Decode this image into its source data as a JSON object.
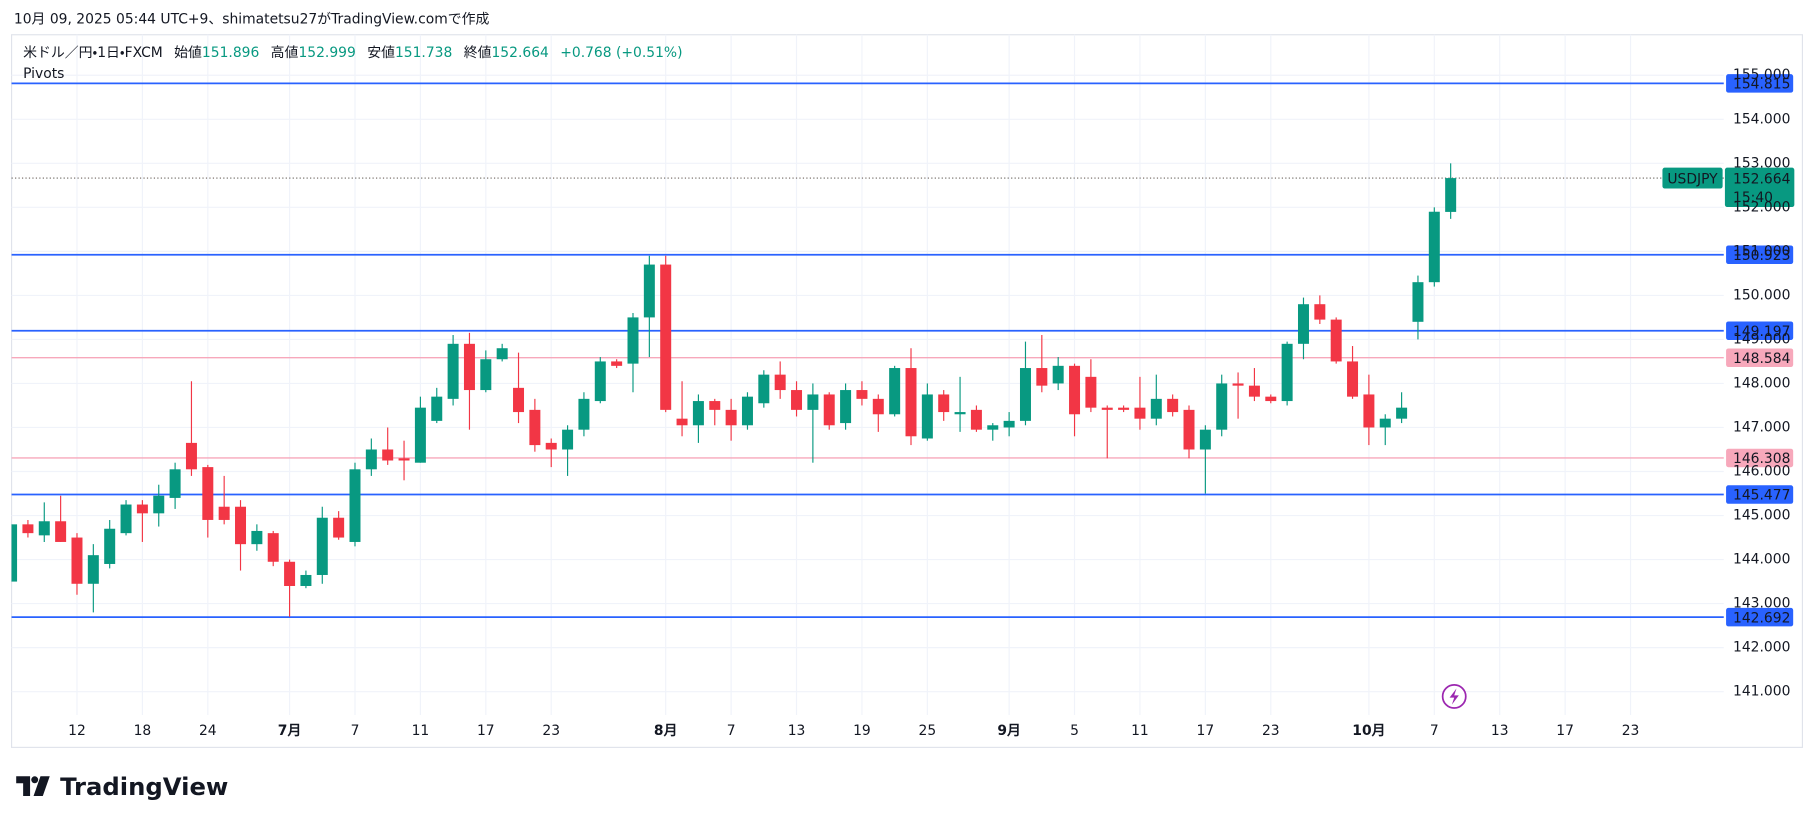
{
  "header": {
    "caption": "10月 09, 2025 05:44 UTC+9、shimatetsu27がTradingView.comで作成"
  },
  "legend": {
    "symbol": "米ドル／円・1日・FXCM",
    "open_label": "始値",
    "open": 151.896,
    "high_label": "高値",
    "high": 152.999,
    "low_label": "安値",
    "low": 151.738,
    "close_label": "終値",
    "close": 152.664,
    "change": "+0.768 (+0.51%)",
    "indicator": "Pivots"
  },
  "footer": {
    "brand": "TradingView"
  },
  "chart_data": {
    "type": "candlestick",
    "x": [
      0,
      1,
      2,
      3,
      4,
      5,
      6,
      7,
      8,
      9,
      10,
      11,
      12,
      13,
      14,
      15,
      16,
      17,
      18,
      19,
      20,
      21,
      22,
      23,
      24,
      25,
      26,
      27,
      28,
      29,
      30,
      31,
      32,
      33,
      34,
      35,
      36,
      37,
      38,
      39,
      40,
      41,
      42,
      43,
      44,
      45,
      46,
      47,
      48,
      49,
      50,
      51,
      52,
      53,
      54,
      55,
      56,
      57,
      58,
      59,
      60,
      61,
      62,
      63,
      64,
      65,
      66,
      67,
      68,
      69,
      70,
      71,
      72,
      73,
      74,
      75,
      76,
      77,
      78,
      79,
      80,
      81,
      82,
      83,
      84,
      85,
      86,
      87,
      88
    ],
    "open": [
      143.5,
      144.8,
      144.55,
      144.87,
      144.5,
      143.45,
      143.9,
      144.6,
      145.25,
      145.05,
      145.4,
      146.65,
      146.1,
      145.2,
      145.2,
      144.35,
      144.6,
      143.95,
      143.4,
      143.65,
      144.95,
      144.4,
      146.05,
      146.5,
      146.3,
      146.2,
      147.15,
      147.65,
      148.9,
      147.85,
      148.55,
      147.9,
      147.4,
      146.65,
      146.5,
      146.95,
      147.6,
      148.5,
      148.45,
      149.5,
      150.7,
      147.2,
      147.05,
      147.6,
      147.4,
      147.05,
      147.55,
      148.2,
      147.85,
      147.4,
      147.75,
      147.1,
      147.85,
      147.65,
      147.3,
      148.35,
      146.75,
      147.75,
      147.3,
      147.4,
      146.95,
      147.0,
      147.15,
      148.35,
      148.0,
      148.4,
      148.15,
      147.45,
      147.45,
      147.45,
      147.2,
      147.65,
      147.4,
      146.5,
      146.95,
      148.0,
      147.95,
      147.7,
      147.6,
      148.9,
      149.8,
      149.45,
      148.5,
      147.75,
      147.0,
      147.2,
      149.4,
      150.3,
      151.896
    ],
    "high": [
      144.8,
      144.9,
      145.3,
      145.45,
      144.6,
      144.35,
      144.9,
      145.35,
      145.35,
      145.7,
      146.2,
      148.05,
      146.15,
      145.9,
      145.35,
      144.8,
      144.65,
      144.0,
      143.75,
      145.2,
      145.1,
      146.2,
      146.75,
      147.0,
      146.7,
      147.7,
      147.9,
      149.1,
      149.15,
      148.75,
      148.9,
      148.7,
      147.65,
      146.75,
      147.05,
      147.8,
      148.6,
      148.55,
      149.6,
      150.9,
      150.9,
      148.05,
      147.75,
      147.65,
      147.65,
      147.8,
      148.3,
      148.5,
      148.05,
      148.0,
      147.8,
      148.0,
      148.05,
      147.75,
      148.4,
      148.8,
      148.0,
      147.85,
      148.15,
      147.5,
      147.1,
      147.35,
      148.95,
      149.1,
      148.6,
      148.45,
      148.55,
      147.5,
      147.5,
      148.15,
      148.2,
      147.75,
      147.5,
      147.05,
      148.2,
      148.25,
      148.35,
      147.75,
      148.95,
      149.95,
      150.0,
      149.5,
      148.85,
      148.2,
      147.3,
      147.8,
      150.45,
      152.0,
      152.999
    ],
    "low": [
      143.5,
      144.5,
      144.4,
      144.4,
      143.2,
      142.8,
      143.8,
      144.55,
      144.4,
      144.75,
      145.15,
      145.9,
      144.5,
      144.8,
      143.75,
      144.2,
      143.85,
      142.7,
      143.35,
      143.45,
      144.45,
      144.3,
      145.9,
      146.15,
      145.8,
      146.2,
      147.1,
      147.5,
      146.95,
      147.8,
      148.5,
      147.1,
      146.45,
      146.1,
      145.9,
      146.8,
      147.55,
      148.35,
      147.8,
      148.6,
      147.35,
      146.8,
      146.65,
      147.05,
      146.7,
      146.95,
      147.45,
      147.65,
      147.25,
      146.2,
      146.95,
      146.95,
      147.5,
      146.9,
      147.25,
      146.6,
      146.7,
      147.15,
      146.9,
      146.9,
      146.7,
      146.8,
      147.05,
      147.8,
      147.85,
      146.8,
      147.35,
      146.3,
      147.35,
      146.95,
      147.05,
      147.25,
      146.3,
      145.5,
      146.8,
      147.2,
      147.6,
      147.55,
      147.5,
      148.55,
      149.35,
      148.45,
      147.65,
      146.6,
      146.6,
      147.1,
      149.0,
      150.2,
      151.738
    ],
    "close": [
      144.8,
      144.6,
      144.87,
      144.4,
      143.45,
      144.1,
      144.7,
      145.25,
      145.05,
      145.45,
      146.05,
      146.05,
      144.9,
      144.9,
      144.35,
      144.65,
      143.95,
      143.4,
      143.65,
      144.95,
      144.5,
      146.05,
      146.5,
      146.25,
      146.25,
      147.45,
      147.7,
      148.9,
      147.85,
      148.55,
      148.8,
      147.35,
      146.6,
      146.5,
      146.95,
      147.65,
      148.5,
      148.4,
      149.5,
      150.7,
      147.4,
      147.05,
      147.6,
      147.4,
      147.05,
      147.7,
      148.2,
      147.85,
      147.4,
      147.75,
      147.05,
      147.85,
      147.65,
      147.3,
      148.35,
      146.8,
      147.75,
      147.35,
      147.35,
      146.95,
      147.05,
      147.15,
      148.35,
      147.95,
      148.4,
      147.3,
      147.45,
      147.4,
      147.4,
      147.2,
      147.65,
      147.35,
      146.5,
      146.95,
      148.0,
      147.95,
      147.7,
      147.6,
      148.9,
      149.8,
      149.45,
      148.5,
      147.7,
      147.0,
      147.2,
      147.45,
      150.3,
      151.9,
      152.664
    ],
    "up_color": "#089981",
    "down_color": "#f23645",
    "xlim": [
      0,
      104.7
    ],
    "xticks": [
      {
        "value": 4,
        "label": "12"
      },
      {
        "value": 8,
        "label": "18"
      },
      {
        "value": 12,
        "label": "24"
      },
      {
        "value": 17,
        "label": "7月"
      },
      {
        "value": 21,
        "label": "7"
      },
      {
        "value": 25,
        "label": "11"
      },
      {
        "value": 29,
        "label": "17"
      },
      {
        "value": 33,
        "label": "23"
      },
      {
        "value": 40,
        "label": "8月"
      },
      {
        "value": 44,
        "label": "7"
      },
      {
        "value": 48,
        "label": "13"
      },
      {
        "value": 52,
        "label": "19"
      },
      {
        "value": 56,
        "label": "25"
      },
      {
        "value": 61,
        "label": "9月"
      },
      {
        "value": 65,
        "label": "5"
      },
      {
        "value": 69,
        "label": "11"
      },
      {
        "value": 73,
        "label": "17"
      },
      {
        "value": 77,
        "label": "23"
      },
      {
        "value": 83,
        "label": "10月"
      },
      {
        "value": 87,
        "label": "7"
      },
      {
        "value": 91,
        "label": "13"
      },
      {
        "value": 95,
        "label": "17"
      },
      {
        "value": 99,
        "label": "23"
      }
    ],
    "month_ticks": [
      "7月",
      "8月",
      "9月",
      "10月"
    ],
    "ylim": [
      140.47,
      155.92
    ],
    "yticks": [
      {
        "value": 141,
        "label": "141.000"
      },
      {
        "value": 142,
        "label": "142.000"
      },
      {
        "value": 143,
        "label": "143.000"
      },
      {
        "value": 144,
        "label": "144.000"
      },
      {
        "value": 145,
        "label": "145.000"
      },
      {
        "value": 146,
        "label": "146.000"
      },
      {
        "value": 147,
        "label": "147.000"
      },
      {
        "value": 148,
        "label": "148.000"
      },
      {
        "value": 149,
        "label": "149.000"
      },
      {
        "value": 150,
        "label": "150.000"
      },
      {
        "value": 151,
        "label": "151.000"
      },
      {
        "value": 152,
        "label": "152.000"
      },
      {
        "value": 153,
        "label": "153.000"
      },
      {
        "value": 154,
        "label": "154.000"
      },
      {
        "value": 155,
        "label": "155.000"
      }
    ],
    "grid": true,
    "pivots": [
      {
        "value": 154.815,
        "color": "#2962ff"
      },
      {
        "value": 150.923,
        "color": "#2962ff"
      },
      {
        "value": 149.197,
        "color": "#2962ff"
      },
      {
        "value": 148.584,
        "color": "#f7a8bb"
      },
      {
        "value": 146.308,
        "color": "#f7a8bb"
      },
      {
        "value": 145.477,
        "color": "#2962ff"
      },
      {
        "value": 142.692,
        "color": "#2962ff"
      }
    ],
    "symbol": "USDJPY",
    "last_price": 152.664,
    "countdown": "15:40"
  }
}
